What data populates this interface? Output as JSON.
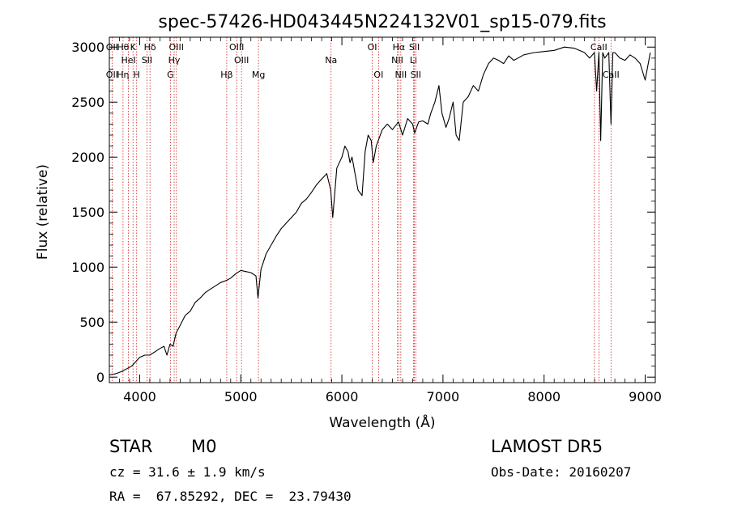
{
  "chart_data": {
    "type": "line",
    "title": "spec-57426-HD043445N224132V01_sp15-079.fits",
    "xlabel": "Wavelength (Å)",
    "ylabel": "Flux (relative)",
    "xlim": [
      3700,
      9100
    ],
    "ylim": [
      -50,
      3090
    ],
    "x_ticks": [
      4000,
      5000,
      6000,
      7000,
      8000,
      9000
    ],
    "y_ticks": [
      0,
      500,
      1000,
      1500,
      2000,
      2500,
      3000
    ],
    "grid": false,
    "series": [
      {
        "x": [
          3700,
          3760,
          3820,
          3880,
          3920,
          3960,
          4000,
          4050,
          4100,
          4150,
          4200,
          4240,
          4270,
          4300,
          4330,
          4360,
          4400,
          4450,
          4500,
          4550,
          4600,
          4650,
          4700,
          4750,
          4800,
          4860,
          4900,
          4950,
          5000,
          5050,
          5100,
          5150,
          5170,
          5200,
          5250,
          5300,
          5350,
          5400,
          5450,
          5500,
          5550,
          5600,
          5650,
          5700,
          5750,
          5800,
          5850,
          5890,
          5910,
          5950,
          6000,
          6030,
          6060,
          6080,
          6100,
          6130,
          6160,
          6200,
          6230,
          6260,
          6290,
          6310,
          6340,
          6400,
          6450,
          6500,
          6560,
          6600,
          6650,
          6700,
          6720,
          6760,
          6800,
          6850,
          6880,
          6920,
          6960,
          6990,
          7030,
          7060,
          7100,
          7130,
          7160,
          7200,
          7250,
          7300,
          7350,
          7400,
          7450,
          7500,
          7550,
          7600,
          7650,
          7700,
          7800,
          7900,
          8000,
          8100,
          8200,
          8300,
          8400,
          8450,
          8498,
          8520,
          8542,
          8560,
          8580,
          8600,
          8640,
          8662,
          8680,
          8700,
          8750,
          8800,
          8850,
          8900,
          8950,
          9000,
          9030,
          9050
        ],
        "y": [
          20,
          30,
          50,
          80,
          100,
          140,
          180,
          200,
          200,
          230,
          260,
          280,
          200,
          300,
          280,
          400,
          470,
          560,
          600,
          680,
          720,
          770,
          800,
          830,
          860,
          880,
          900,
          940,
          970,
          960,
          950,
          920,
          720,
          980,
          1120,
          1200,
          1280,
          1350,
          1400,
          1450,
          1500,
          1580,
          1620,
          1680,
          1750,
          1800,
          1850,
          1700,
          1450,
          1900,
          2000,
          2100,
          2050,
          1950,
          2000,
          1850,
          1700,
          1650,
          2050,
          2200,
          2150,
          1950,
          2100,
          2250,
          2300,
          2250,
          2320,
          2200,
          2350,
          2300,
          2220,
          2320,
          2330,
          2300,
          2400,
          2500,
          2650,
          2400,
          2270,
          2350,
          2500,
          2200,
          2150,
          2500,
          2550,
          2650,
          2600,
          2750,
          2850,
          2900,
          2880,
          2850,
          2920,
          2880,
          2930,
          2950,
          2960,
          2970,
          3000,
          2990,
          2950,
          2900,
          2950,
          2600,
          2950,
          2150,
          2950,
          2900,
          2950,
          2300,
          2950,
          2950,
          2900,
          2880,
          2930,
          2900,
          2850,
          2700,
          2850,
          2950
        ],
        "color": "#000000"
      }
    ],
    "line_markers": [
      {
        "x": 3727,
        "top": "OII",
        "mid": "",
        "low": "OII"
      },
      {
        "x": 3835,
        "top": "Hθ",
        "mid": "",
        "low": "Hη"
      },
      {
        "x": 3889,
        "top": "",
        "mid": "HeI",
        "low": ""
      },
      {
        "x": 3934,
        "top": "K",
        "mid": "",
        "low": ""
      },
      {
        "x": 3970,
        "top": "",
        "mid": "",
        "low": "H"
      },
      {
        "x": 4072,
        "top": "",
        "mid": "SII",
        "low": ""
      },
      {
        "x": 4102,
        "top": "Hδ",
        "mid": "",
        "low": ""
      },
      {
        "x": 4304,
        "top": "",
        "mid": "",
        "low": "G"
      },
      {
        "x": 4341,
        "top": "",
        "mid": "Hγ",
        "low": ""
      },
      {
        "x": 4363,
        "top": "OIII",
        "mid": "",
        "low": ""
      },
      {
        "x": 4861,
        "top": "",
        "mid": "",
        "low": "Hβ"
      },
      {
        "x": 4959,
        "top": "OIII",
        "mid": "",
        "low": ""
      },
      {
        "x": 5007,
        "top": "",
        "mid": "OIII",
        "low": ""
      },
      {
        "x": 5175,
        "top": "",
        "mid": "",
        "low": "Mg"
      },
      {
        "x": 5893,
        "top": "",
        "mid": "Na",
        "low": ""
      },
      {
        "x": 6300,
        "top": "OI",
        "mid": "",
        "low": ""
      },
      {
        "x": 6363,
        "top": "",
        "mid": "",
        "low": "OI"
      },
      {
        "x": 6548,
        "top": "",
        "mid": "NII",
        "low": ""
      },
      {
        "x": 6563,
        "top": "Hα",
        "mid": "",
        "low": ""
      },
      {
        "x": 6583,
        "top": "",
        "mid": "",
        "low": "NII"
      },
      {
        "x": 6708,
        "top": "",
        "mid": "Li",
        "low": ""
      },
      {
        "x": 6717,
        "top": "SII",
        "mid": "",
        "low": ""
      },
      {
        "x": 6731,
        "top": "",
        "mid": "",
        "low": "SII"
      },
      {
        "x": 8498,
        "top": "",
        "mid": "",
        "low": ""
      },
      {
        "x": 8542,
        "top": "CaII",
        "mid": "",
        "low": ""
      },
      {
        "x": 8662,
        "top": "",
        "mid": "",
        "low": "CaII"
      }
    ]
  },
  "info": {
    "class": "STAR",
    "subclass": "M0",
    "survey": "LAMOST DR5",
    "redshift": "cz = 31.6 ± 1.9 km/s",
    "obs_date": "Obs-Date: 20160207",
    "coords": "RA =  67.85292, DEC =  23.79430"
  },
  "colors": {
    "marker": "#cc2222",
    "axis": "#000000"
  }
}
